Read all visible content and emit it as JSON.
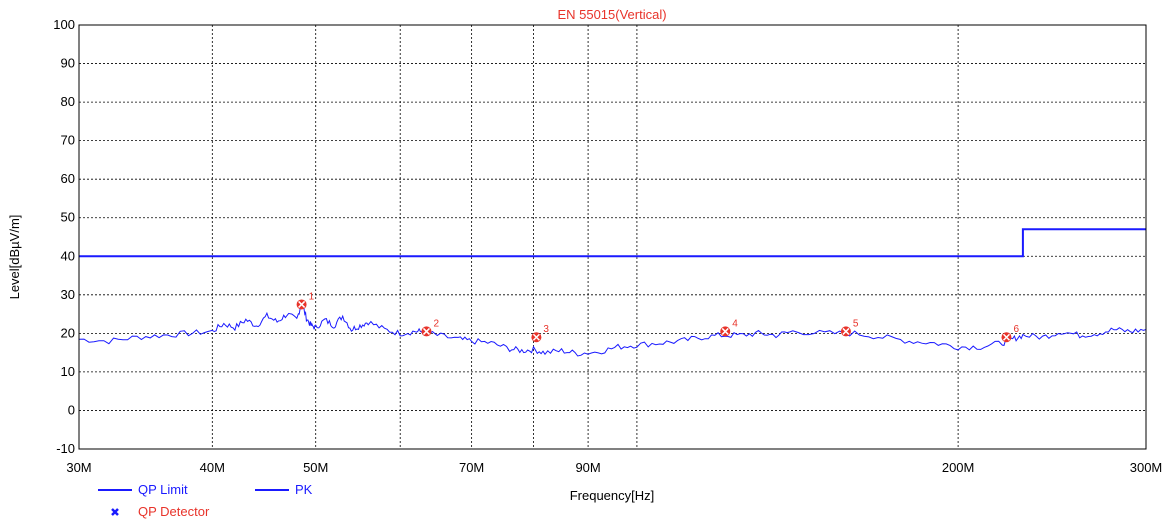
{
  "chart_data": {
    "type": "line",
    "title": "EN 55015(Vertical)",
    "xlabel": "Frequency[Hz]",
    "ylabel": "Level[dBµV/m]",
    "x_scale": "log",
    "xlim": [
      30,
      300
    ],
    "ylim": [
      -10,
      100
    ],
    "x_ticks": [
      {
        "value": 30,
        "label": "30M"
      },
      {
        "value": 40,
        "label": "40M"
      },
      {
        "value": 50,
        "label": "50M"
      },
      {
        "value": 70,
        "label": "70M"
      },
      {
        "value": 90,
        "label": "90M"
      },
      {
        "value": 200,
        "label": "200M"
      },
      {
        "value": 300,
        "label": "300M"
      }
    ],
    "x_grid": [
      40,
      50,
      60,
      70,
      80,
      90,
      100,
      200,
      300
    ],
    "y_ticks": [
      -10,
      0,
      10,
      20,
      30,
      40,
      50,
      60,
      70,
      80,
      90,
      100
    ],
    "grid": true,
    "series": [
      {
        "name": "QP Limit",
        "color": "#1a1aff",
        "x": [
          30,
          230,
          230,
          300
        ],
        "values": [
          40,
          40,
          47,
          47
        ]
      },
      {
        "name": "PK",
        "color": "#1a1aff",
        "x": [
          30,
          32,
          34,
          36,
          38,
          40,
          41,
          42,
          43,
          44,
          45,
          46,
          47,
          48,
          48.5,
          49,
          49.5,
          50,
          51,
          52,
          53,
          54,
          55,
          56,
          58,
          60,
          62,
          63,
          65,
          68,
          70,
          73,
          76,
          78,
          80,
          82,
          85,
          88,
          92,
          96,
          100,
          105,
          110,
          115,
          120,
          125,
          130,
          135,
          140,
          150,
          160,
          170,
          180,
          190,
          200,
          210,
          220,
          225,
          230,
          240,
          250,
          260,
          270,
          280,
          290,
          300
        ],
        "values": [
          18.5,
          18.0,
          19.0,
          19.5,
          20.0,
          20.5,
          22.5,
          21.5,
          23.5,
          22.0,
          24.5,
          23.0,
          25.0,
          23.5,
          28.0,
          24.0,
          22.0,
          21.5,
          23.5,
          22.0,
          24.5,
          21.0,
          22.0,
          23.0,
          21.0,
          20.0,
          20.5,
          20.5,
          19.5,
          18.5,
          18.0,
          17.5,
          16.0,
          15.5,
          15.8,
          15.0,
          15.5,
          14.8,
          15.2,
          16.5,
          17.0,
          17.5,
          18.0,
          19.0,
          19.5,
          19.5,
          20.0,
          19.5,
          20.5,
          20.0,
          20.0,
          19.0,
          18.0,
          17.5,
          16.5,
          16.5,
          17.5,
          18.5,
          19.5,
          19.0,
          20.5,
          19.5,
          20.0,
          21.0,
          20.5,
          21.0
        ]
      },
      {
        "name": "QP Detector",
        "color": "#e8332a",
        "type": "scatter",
        "points": [
          {
            "label": "1",
            "x": 48.5,
            "y": 27.5
          },
          {
            "label": "2",
            "x": 63.5,
            "y": 20.5
          },
          {
            "label": "3",
            "x": 80.5,
            "y": 19.0
          },
          {
            "label": "4",
            "x": 121,
            "y": 20.5
          },
          {
            "label": "5",
            "x": 157,
            "y": 20.5
          },
          {
            "label": "6",
            "x": 222,
            "y": 19.0
          }
        ]
      }
    ],
    "legend": [
      {
        "label": "QP Limit",
        "kind": "line",
        "color": "#1a1aff"
      },
      {
        "label": "PK",
        "kind": "line",
        "color": "#1a1aff"
      },
      {
        "label": "QP Detector",
        "kind": "marker",
        "color": "#e8332a"
      }
    ],
    "legend_position": "bottom-left"
  }
}
